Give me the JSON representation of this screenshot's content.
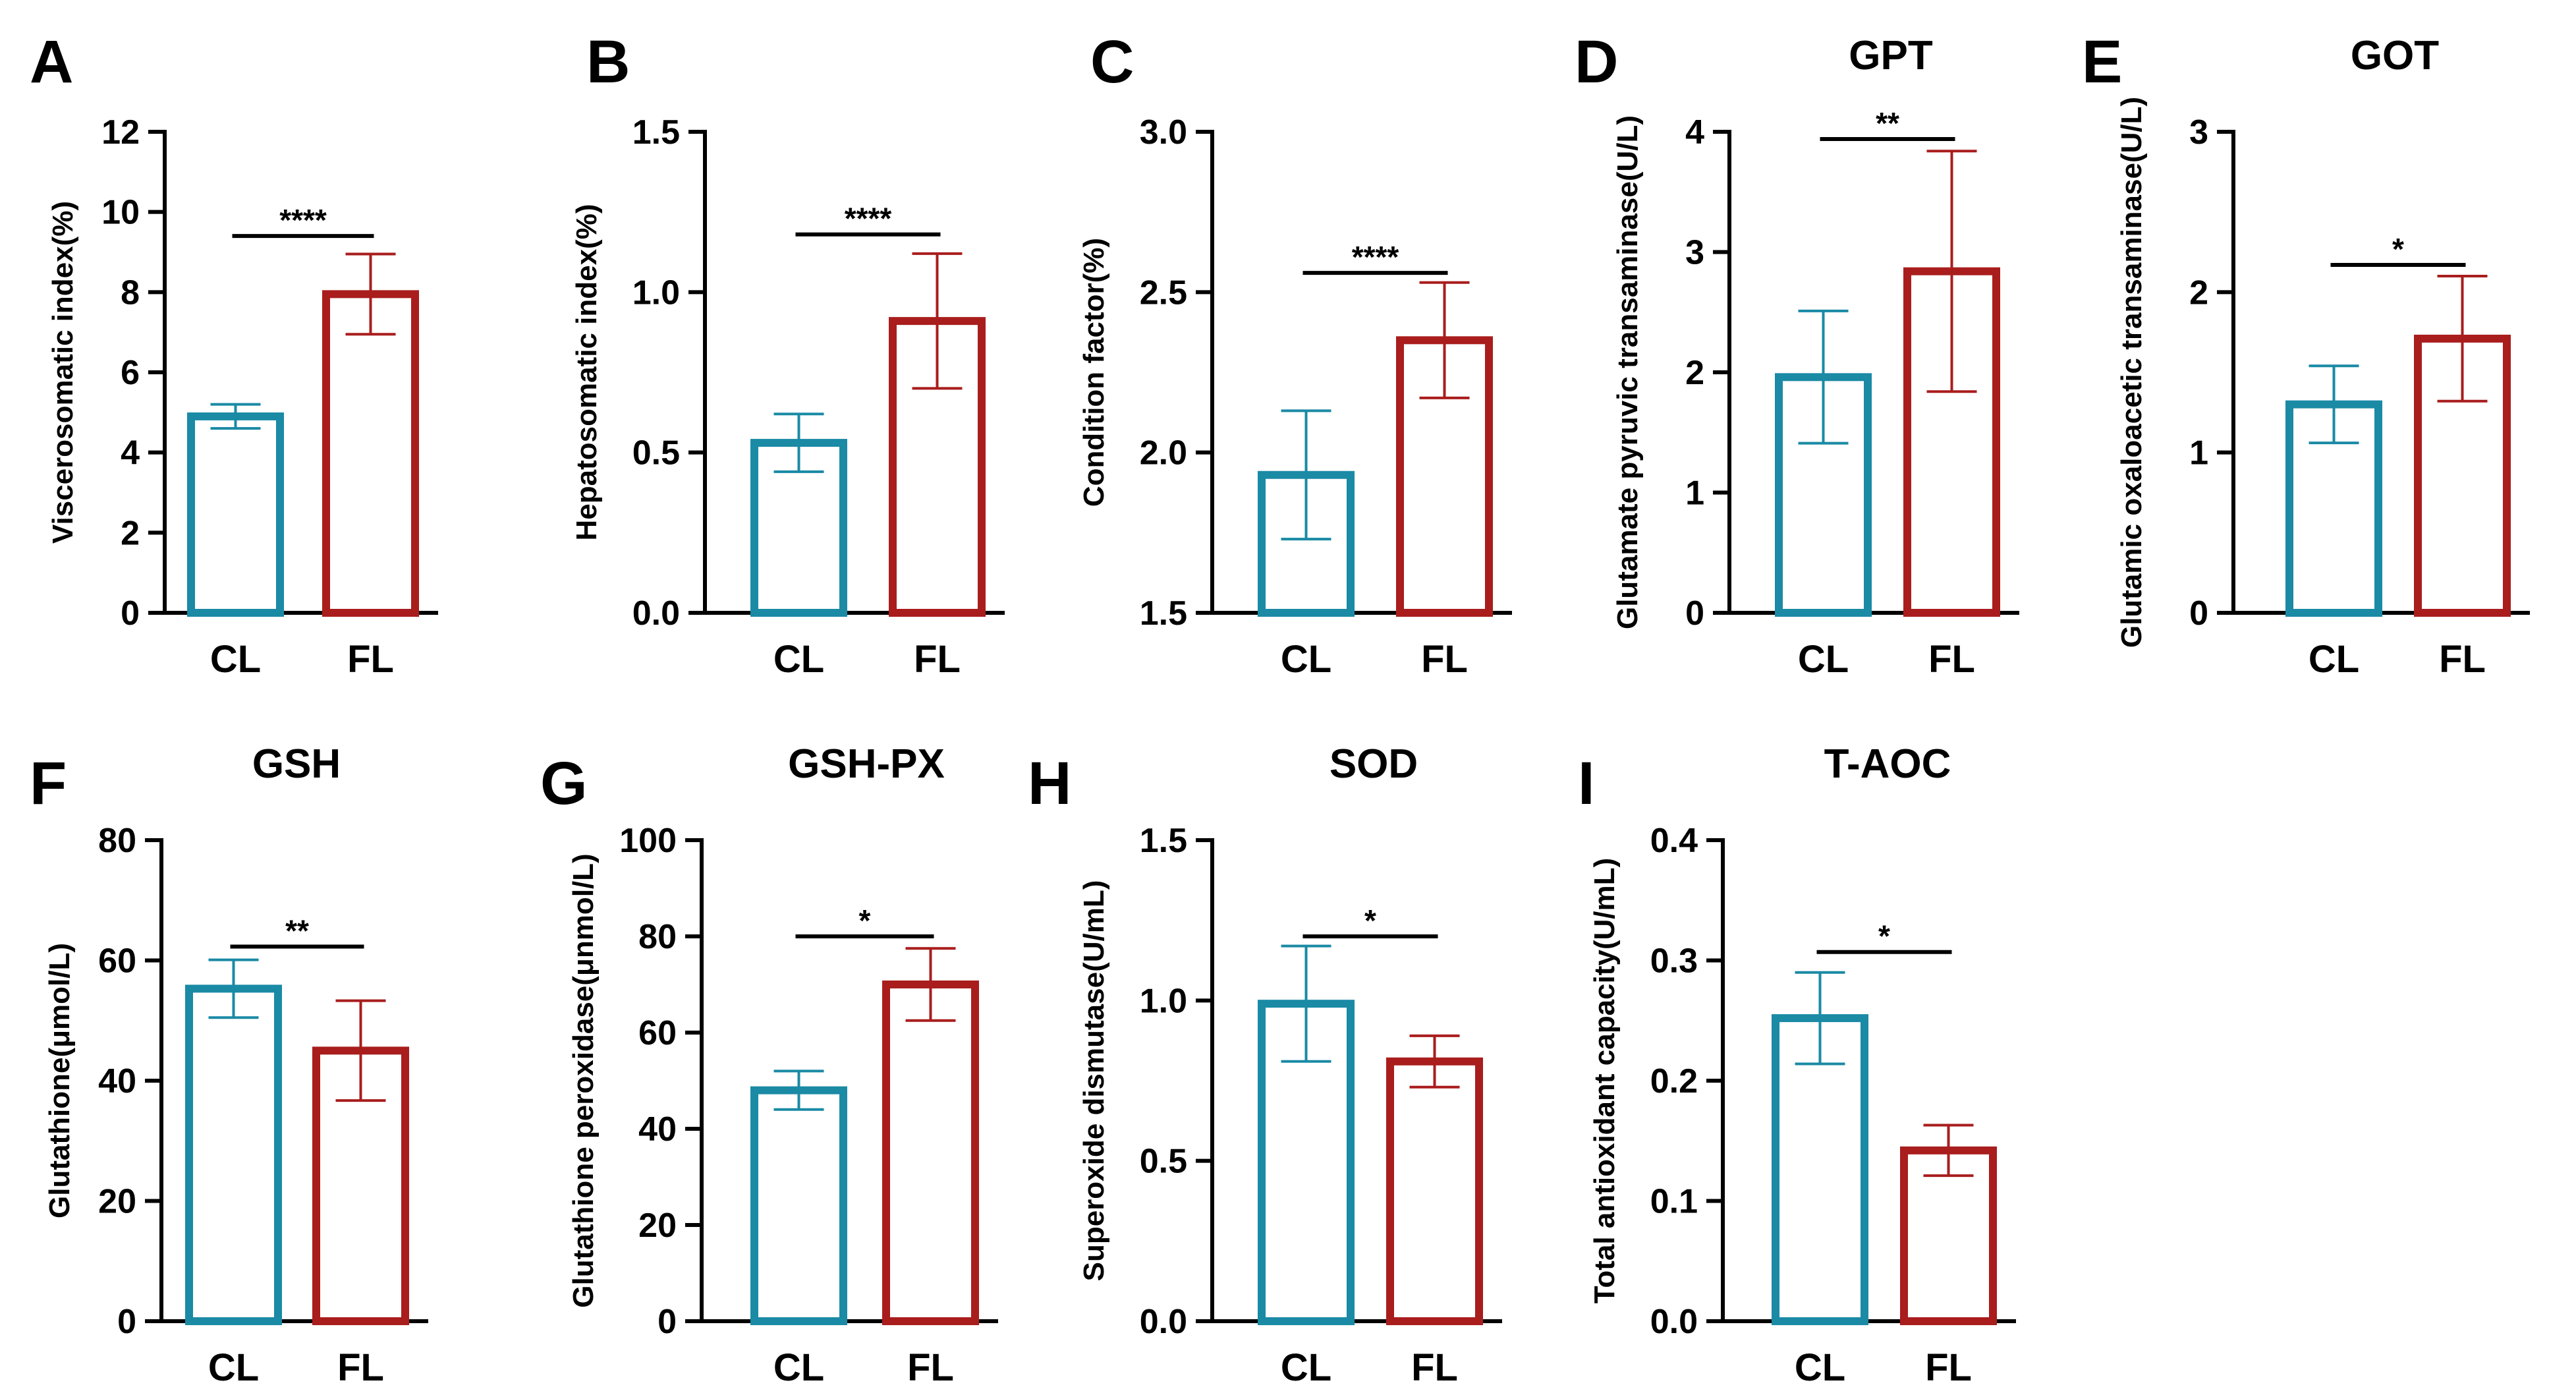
{
  "colors": {
    "CL": "#1a8aa5",
    "FL": "#a91d1d",
    "axis": "#000000"
  },
  "chart_data": [
    {
      "panel": "A",
      "type": "bar",
      "title": "",
      "ylabel": "Viscerosomatic index(%)",
      "categories": [
        "CL",
        "FL"
      ],
      "values": [
        4.9,
        7.95
      ],
      "errors": [
        0.3,
        1.0
      ],
      "ylim": [
        0,
        12
      ],
      "yticks": [
        "0",
        "2",
        "4",
        "6",
        "8",
        "10",
        "12"
      ],
      "significance": "****",
      "sig_level": 9.4
    },
    {
      "panel": "B",
      "type": "bar",
      "title": "",
      "ylabel": "Hepatosomatic index(%)",
      "categories": [
        "CL",
        "FL"
      ],
      "values": [
        0.53,
        0.91
      ],
      "errors": [
        0.09,
        0.21
      ],
      "ylim": [
        0,
        1.5
      ],
      "yticks": [
        "0.0",
        "0.5",
        "1.0",
        "1.5"
      ],
      "significance": "****",
      "sig_level": 1.18
    },
    {
      "panel": "C",
      "type": "bar",
      "title": "",
      "ylabel": "Condition factor(%)",
      "categories": [
        "CL",
        "FL"
      ],
      "values": [
        1.93,
        2.35
      ],
      "errors": [
        0.2,
        0.18
      ],
      "ylim": [
        1.5,
        3.0
      ],
      "yticks": [
        "1.5",
        "2.0",
        "2.5",
        "3.0"
      ],
      "significance": "****",
      "sig_level": 2.56
    },
    {
      "panel": "D",
      "type": "bar",
      "title": "GPT",
      "ylabel": "Glutamate pyruvic transaminase(U/L)",
      "categories": [
        "CL",
        "FL"
      ],
      "values": [
        1.96,
        2.84
      ],
      "errors": [
        0.55,
        1.0
      ],
      "ylim": [
        0,
        4
      ],
      "yticks": [
        "0",
        "1",
        "2",
        "3",
        "4"
      ],
      "significance": "**",
      "sig_level": 3.94
    },
    {
      "panel": "E",
      "type": "bar",
      "title": "GOT",
      "ylabel": "Glutamic oxaloacetic transaminase(U/L)",
      "categories": [
        "CL",
        "FL"
      ],
      "values": [
        1.3,
        1.71
      ],
      "errors": [
        0.24,
        0.39
      ],
      "ylim": [
        0,
        3
      ],
      "yticks": [
        "0",
        "1",
        "2",
        "3"
      ],
      "significance": "*",
      "sig_level": 2.17
    },
    {
      "panel": "F",
      "type": "bar",
      "title": "GSH",
      "ylabel": "Glutathione(μmol/L)",
      "categories": [
        "CL",
        "FL"
      ],
      "values": [
        55.3,
        45.0
      ],
      "errors": [
        4.8,
        8.3
      ],
      "ylim": [
        0,
        80
      ],
      "yticks": [
        "0",
        "20",
        "40",
        "60",
        "80"
      ],
      "significance": "**",
      "sig_level": 62.3
    },
    {
      "panel": "G",
      "type": "bar",
      "title": "GSH-PX",
      "ylabel": "Glutathione peroxidase(μnmol/L)",
      "categories": [
        "CL",
        "FL"
      ],
      "values": [
        48.0,
        70.0
      ],
      "errors": [
        4.0,
        7.5
      ],
      "ylim": [
        0,
        100
      ],
      "yticks": [
        "0",
        "20",
        "40",
        "60",
        "80",
        "100"
      ],
      "significance": "*",
      "sig_level": 80.0
    },
    {
      "panel": "H",
      "type": "bar",
      "title": "SOD",
      "ylabel": "Superoxide dismutase(U/mL)",
      "categories": [
        "CL",
        "FL"
      ],
      "values": [
        0.99,
        0.81
      ],
      "errors": [
        0.18,
        0.08
      ],
      "ylim": [
        0,
        1.5
      ],
      "yticks": [
        "0.0",
        "0.5",
        "1.0",
        "1.5"
      ],
      "significance": "*",
      "sig_level": 1.2
    },
    {
      "panel": "I",
      "type": "bar",
      "title": "T-AOC",
      "ylabel": "Total antioxidant capacity(U/mL)",
      "categories": [
        "CL",
        "FL"
      ],
      "values": [
        0.252,
        0.142
      ],
      "errors": [
        0.038,
        0.021
      ],
      "ylim": [
        0,
        0.4
      ],
      "yticks": [
        "0.0",
        "0.1",
        "0.2",
        "0.3",
        "0.4"
      ],
      "significance": "*",
      "sig_level": 0.307
    }
  ]
}
